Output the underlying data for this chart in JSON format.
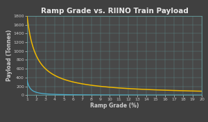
{
  "title": "Ramp Grade vs. RIINO Train Payload",
  "xlabel": "Ramp Grade (%)",
  "ylabel": "Payload (Tonnes)",
  "bg_color": "#404040",
  "plot_bg_color": "#484848",
  "grid_color": "#6aacac",
  "title_color": "#e8e8e8",
  "label_color": "#cccccc",
  "tick_color": "#cccccc",
  "line_color_yellow": "#f0b800",
  "line_color_blue": "#4ab0d0",
  "x_start": 1,
  "x_end": 20,
  "y_max": 1800,
  "yellow_constant": 1800,
  "blue_constant": 120,
  "x_ticks": [
    1,
    2,
    3,
    4,
    5,
    6,
    7,
    8,
    9,
    10,
    11,
    12,
    13,
    14,
    15,
    16,
    17,
    18,
    19,
    20
  ],
  "y_ticks": [
    0,
    200,
    400,
    600,
    800,
    1000,
    1200,
    1400,
    1600,
    1800
  ],
  "title_fontsize": 7.5,
  "axis_label_fontsize": 5.5,
  "tick_fontsize": 4.5
}
